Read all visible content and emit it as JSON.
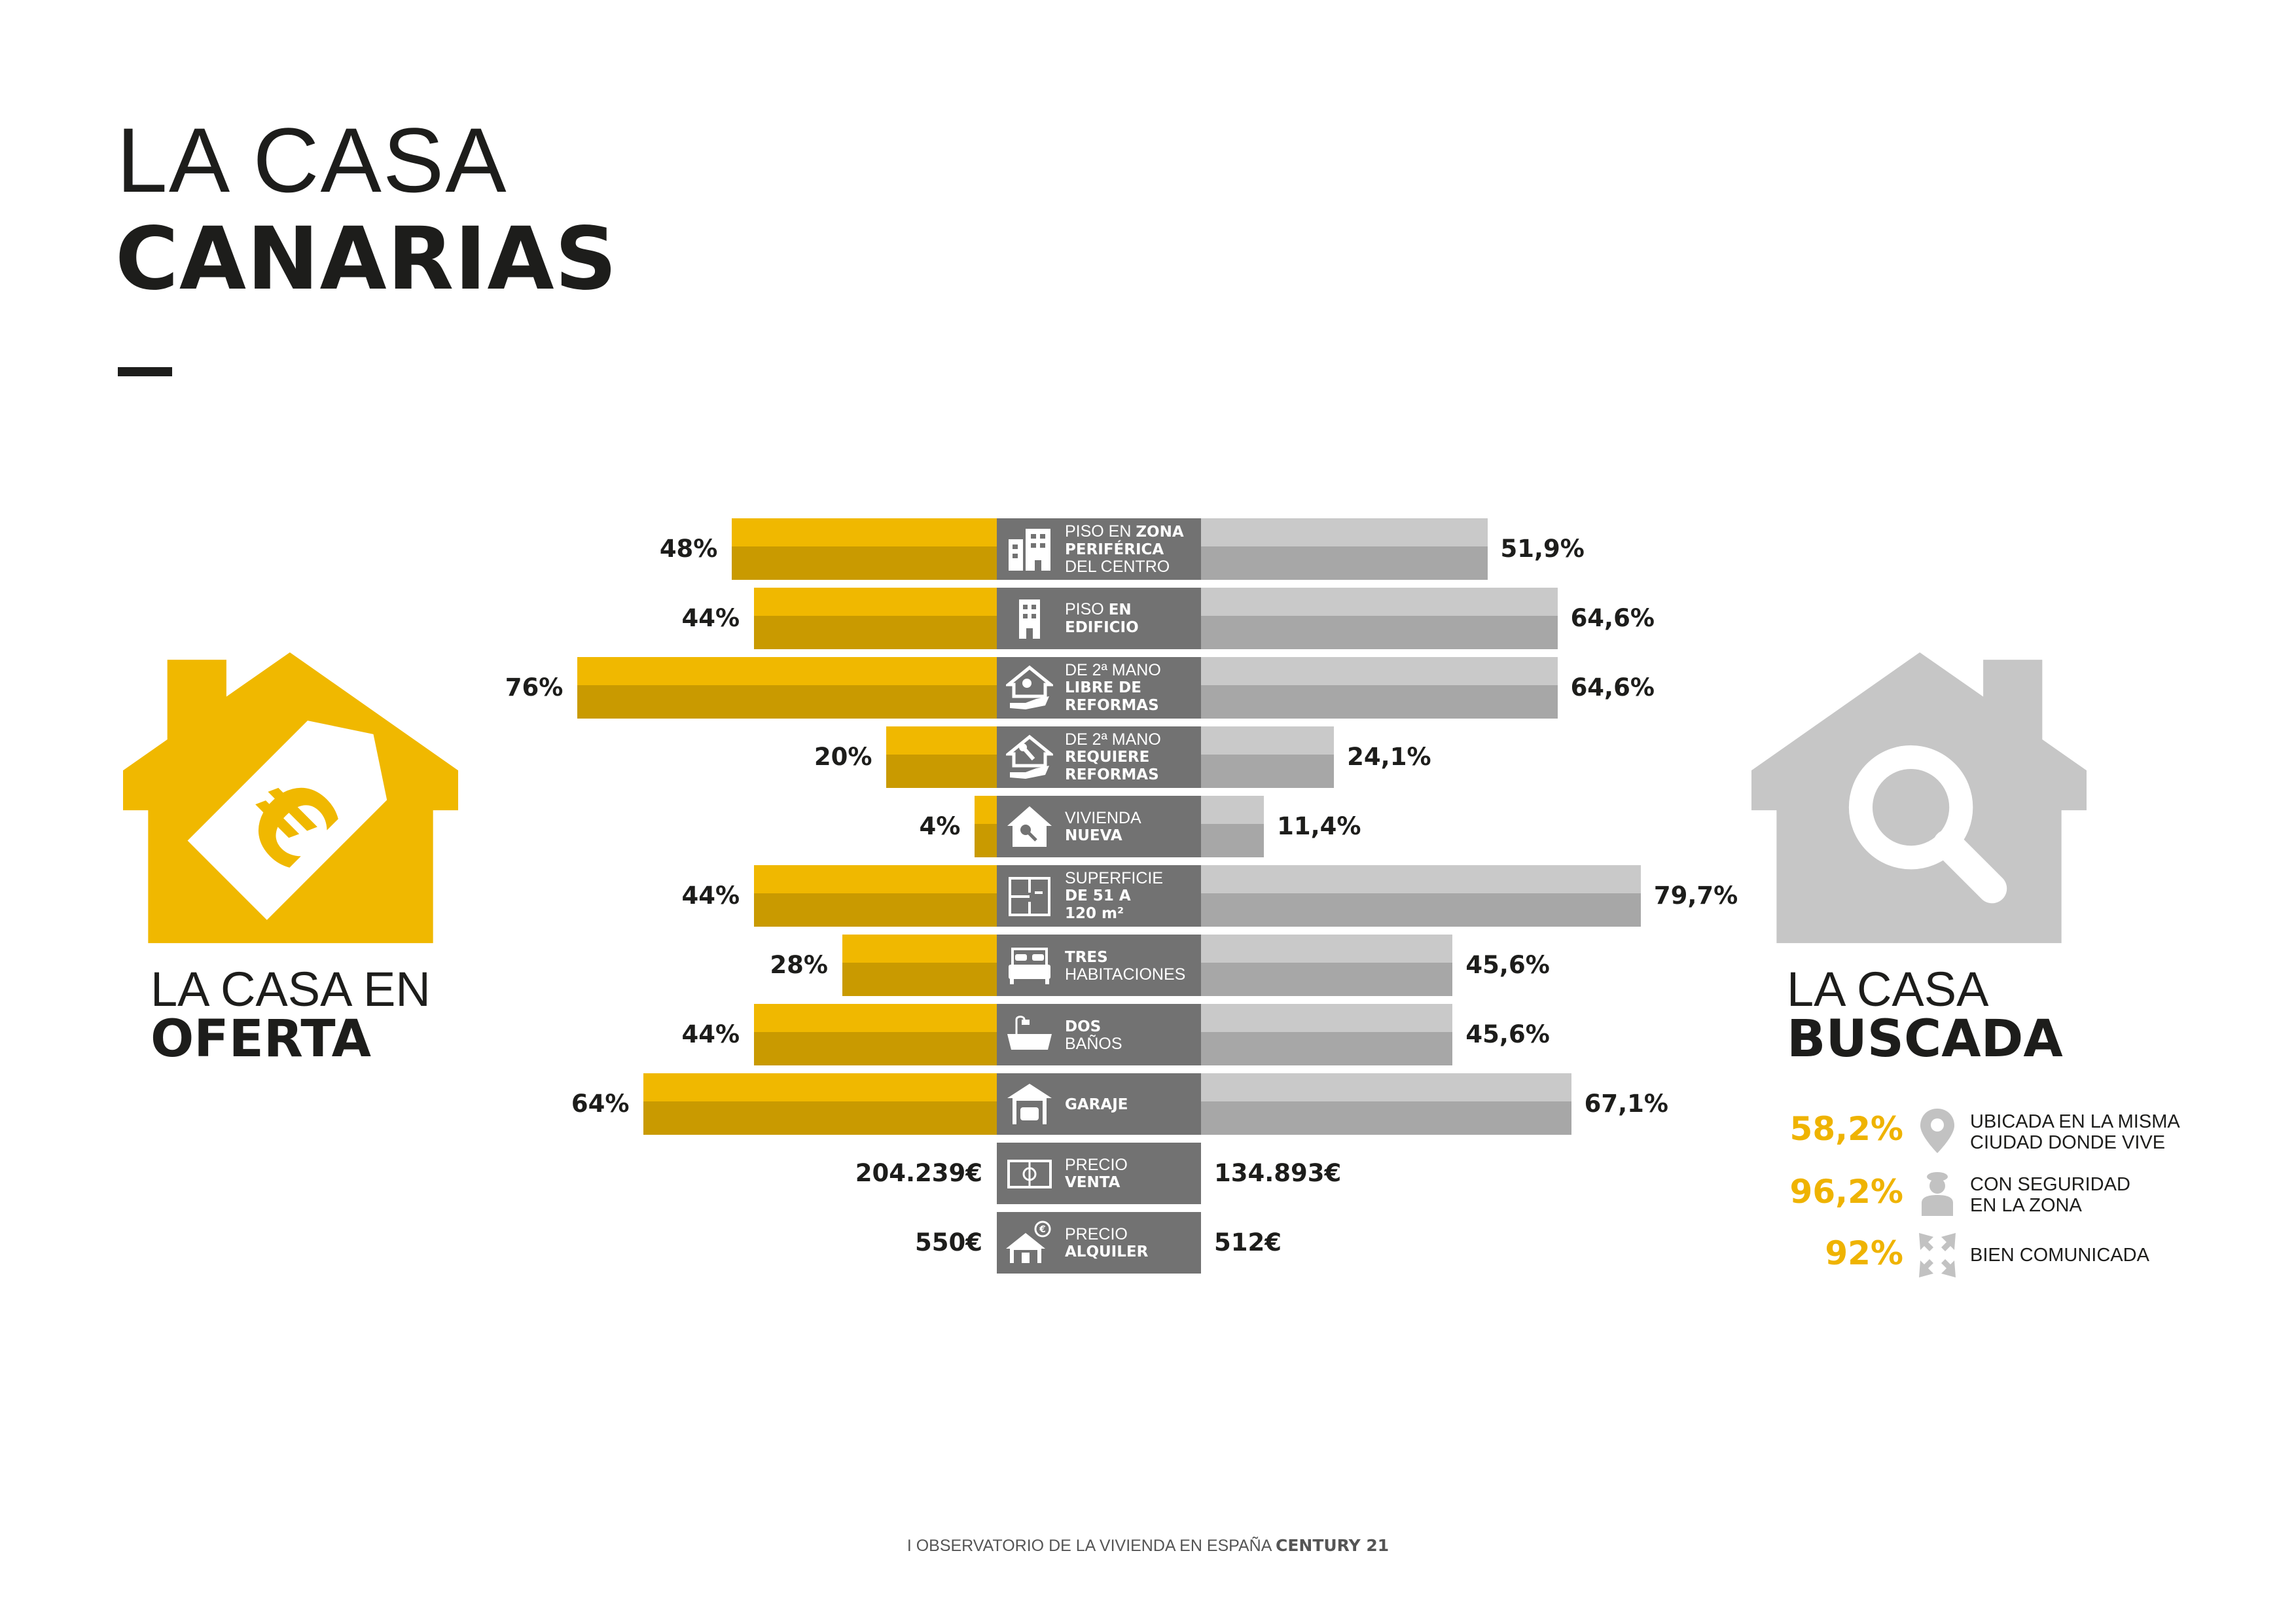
{
  "header": {
    "title_line1": "LA CASA",
    "title_line2": "CANARIAS"
  },
  "left_panel": {
    "title_line1": "LA CASA EN",
    "title_line2": "OFERTA"
  },
  "right_panel": {
    "title_line1": "LA CASA",
    "title_line2": "BUSCADA"
  },
  "colors": {
    "yellow": "#f0b800",
    "yellow_dark": "#c99a00",
    "gray": "#c9c9c9",
    "gray_dark": "#a7a7a7",
    "center": "#727272"
  },
  "chart_data": {
    "type": "bar",
    "title": "LA CASA CANARIAS",
    "series": [
      {
        "name": "LA CASA EN OFERTA",
        "values": [
          48,
          44,
          76,
          20,
          4,
          44,
          28,
          44,
          64
        ]
      },
      {
        "name": "LA CASA BUSCADA",
        "values": [
          51.9,
          64.6,
          64.6,
          24.1,
          11.4,
          79.7,
          45.6,
          45.6,
          67.1
        ]
      }
    ],
    "rows": [
      {
        "icon": "buildings-icon",
        "label": [
          [
            {
              "t": "PISO EN ",
              "b": false
            },
            {
              "t": "ZONA",
              "b": true
            }
          ],
          [
            {
              "t": "PERIFÉRICA",
              "b": true
            }
          ],
          [
            {
              "t": "DEL CENTRO",
              "b": false
            }
          ]
        ],
        "left_label": "48%",
        "right_label": "51,9%"
      },
      {
        "icon": "building-icon",
        "label": [
          [
            {
              "t": "PISO ",
              "b": false
            },
            {
              "t": "EN",
              "b": true
            }
          ],
          [
            {
              "t": "EDIFICIO",
              "b": true
            }
          ]
        ],
        "left_label": "44%",
        "right_label": "64,6%"
      },
      {
        "icon": "house-key-hand-icon",
        "label": [
          [
            {
              "t": "DE 2ª MANO",
              "b": false
            }
          ],
          [
            {
              "t": "LIBRE DE",
              "b": true
            }
          ],
          [
            {
              "t": "REFORMAS",
              "b": true
            }
          ]
        ],
        "left_label": "76%",
        "right_label": "64,6%"
      },
      {
        "icon": "house-wrench-hand-icon",
        "label": [
          [
            {
              "t": "DE 2ª MANO",
              "b": false
            }
          ],
          [
            {
              "t": "REQUIERE",
              "b": true
            }
          ],
          [
            {
              "t": "REFORMAS",
              "b": true
            }
          ]
        ],
        "left_label": "20%",
        "right_label": "24,1%"
      },
      {
        "icon": "house-key-icon",
        "label": [
          [
            {
              "t": "VIVIENDA",
              "b": false
            }
          ],
          [
            {
              "t": "NUEVA",
              "b": true
            }
          ]
        ],
        "left_label": "4%",
        "right_label": "11,4%"
      },
      {
        "icon": "floorplan-icon",
        "label": [
          [
            {
              "t": "SUPERFICIE",
              "b": false
            }
          ],
          [
            {
              "t": "DE 51 A",
              "b": true
            }
          ],
          [
            {
              "t": "120 m²",
              "b": true
            }
          ]
        ],
        "left_label": "44%",
        "right_label": "79,7%"
      },
      {
        "icon": "bed-icon",
        "label": [
          [
            {
              "t": "TRES",
              "b": true
            }
          ],
          [
            {
              "t": "HABITACIONES",
              "b": false
            }
          ]
        ],
        "left_label": "28%",
        "right_label": "45,6%"
      },
      {
        "icon": "bathtub-icon",
        "label": [
          [
            {
              "t": "DOS",
              "b": true
            }
          ],
          [
            {
              "t": "BAÑOS",
              "b": false
            }
          ]
        ],
        "left_label": "44%",
        "right_label": "45,6%"
      },
      {
        "icon": "garage-car-icon",
        "label": [
          [
            {
              "t": "GARAJE",
              "b": true
            }
          ]
        ],
        "left_label": "64%",
        "right_label": "67,1%"
      }
    ],
    "xlim": [
      0,
      100
    ]
  },
  "prices": [
    {
      "icon": "banknote-icon",
      "label": [
        [
          {
            "t": "PRECIO",
            "b": false
          }
        ],
        [
          {
            "t": "VENTA",
            "b": true
          }
        ]
      ],
      "left_label": "204.239€",
      "right_label": "134.893€"
    },
    {
      "icon": "house-euro-icon",
      "label": [
        [
          {
            "t": "PRECIO",
            "b": false
          }
        ],
        [
          {
            "t": "ALQUILER",
            "b": true
          }
        ]
      ],
      "left_label": "550€",
      "right_label": "512€"
    }
  ],
  "stats": [
    {
      "value": "58,2%",
      "line1": "UBICADA EN LA MISMA",
      "line2": "CIUDAD DONDE VIVE",
      "icon": "location-pin-icon"
    },
    {
      "value": "96,2%",
      "line1": "CON SEGURIDAD",
      "line2": "EN LA ZONA",
      "icon": "security-guard-icon"
    },
    {
      "value": "92%",
      "line1": "BIEN COMUNICADA",
      "line2": "",
      "icon": "arrows-icon"
    }
  ],
  "footer": {
    "text": "I OBSERVATORIO DE LA VIVIENDA EN ESPAÑA ",
    "brand": "CENTURY 21"
  }
}
